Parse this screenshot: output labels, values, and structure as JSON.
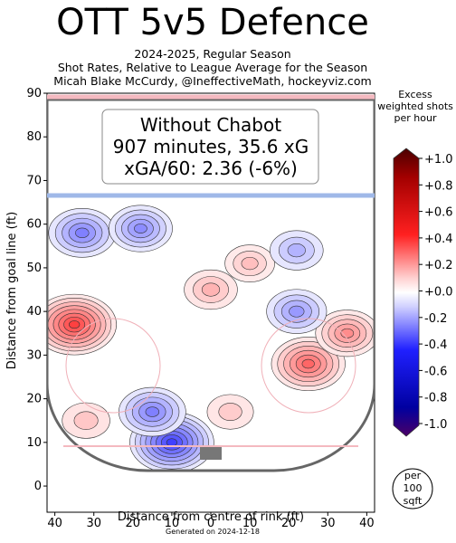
{
  "header": {
    "title": "OTT 5v5 Defence",
    "subtitle_1": "2024-2025, Regular Season",
    "subtitle_2": "Shot Rates, Relative to League Average for the Season",
    "subtitle_3": "Micah Blake McCurdy, @IneffectiveMath, hockeyviz.com"
  },
  "info_box": {
    "line_1": "Without Chabot",
    "line_2": "907 minutes, 35.6 xG",
    "line_3": "xGA/60: 2.36 (-6%)"
  },
  "colorbar": {
    "title": "Excess weighted shots per hour",
    "ticks": [
      "+1.0",
      "+0.8",
      "+0.6",
      "+0.4",
      "+0.2",
      "+0.0",
      "-0.2",
      "-0.4",
      "-0.6",
      "-0.8",
      "-1.0"
    ],
    "positive_color": "#ff0000",
    "negative_color": "#0000ff"
  },
  "per_badge": [
    "per",
    "100",
    "sqft"
  ],
  "footer": "Generated on 2024-12-18",
  "chart_data": {
    "type": "heatmap",
    "title": "OTT 5v5 Defence",
    "xlabel": "Distance from centre of rink (ft)",
    "ylabel": "Distance from goal line (ft)",
    "xlim": [
      42,
      -42
    ],
    "ylim": [
      -6,
      90
    ],
    "x_ticks": [
      40,
      30,
      20,
      10,
      0,
      10,
      20,
      30,
      40
    ],
    "x_tick_values": [
      40,
      30,
      20,
      10,
      0,
      -10,
      -20,
      -30,
      -40
    ],
    "y_ticks": [
      0,
      10,
      20,
      30,
      40,
      50,
      60,
      70,
      80,
      90
    ],
    "color_range": [
      -1.0,
      1.0
    ],
    "regions": [
      {
        "x": 35,
        "y": 37,
        "value": 0.75
      },
      {
        "x": -25,
        "y": 28,
        "value": 0.6
      },
      {
        "x": -35,
        "y": 35,
        "value": 0.45
      },
      {
        "x": 0,
        "y": 45,
        "value": 0.3
      },
      {
        "x": -10,
        "y": 51,
        "value": 0.25
      },
      {
        "x": 32,
        "y": 15,
        "value": 0.22
      },
      {
        "x": -5,
        "y": 17,
        "value": 0.2
      },
      {
        "x": 10,
        "y": 10,
        "value": -0.75
      },
      {
        "x": 15,
        "y": 17,
        "value": -0.5
      },
      {
        "x": 33,
        "y": 58,
        "value": -0.5
      },
      {
        "x": 18,
        "y": 59,
        "value": -0.45
      },
      {
        "x": -22,
        "y": 40,
        "value": -0.4
      },
      {
        "x": -22,
        "y": 54,
        "value": -0.3
      }
    ]
  }
}
